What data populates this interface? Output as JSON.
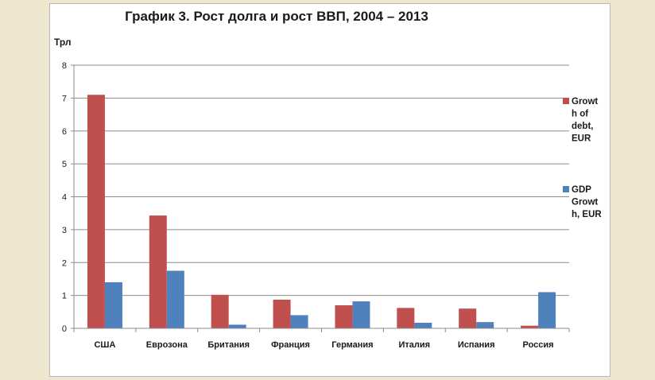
{
  "chart_data": {
    "type": "bar",
    "title": "График 3. Рост долга и рост ВВП, 2004 – 2013",
    "unit_label": "Трл",
    "categories": [
      "США",
      "Еврозона",
      "Британия",
      "Франция",
      "Германия",
      "Италия",
      "Испания",
      "Россия"
    ],
    "series": [
      {
        "name": "Growth of debt, EUR",
        "legend_lines": [
          "Growt",
          "h of",
          "debt,",
          "EUR"
        ],
        "color": "#c0504d",
        "values": [
          7.1,
          3.43,
          1.02,
          0.87,
          0.7,
          0.62,
          0.6,
          0.08
        ]
      },
      {
        "name": "GDP Growth, EUR",
        "legend_lines": [
          "GDP",
          "Growt",
          "h, EUR"
        ],
        "color": "#4f81bd",
        "values": [
          1.4,
          1.75,
          0.11,
          0.4,
          0.82,
          0.17,
          0.19,
          1.1
        ]
      }
    ],
    "ylim": [
      0,
      8
    ],
    "yticks": [
      0,
      1,
      2,
      3,
      4,
      5,
      6,
      7,
      8
    ],
    "grid": true,
    "legend_position": "right"
  }
}
